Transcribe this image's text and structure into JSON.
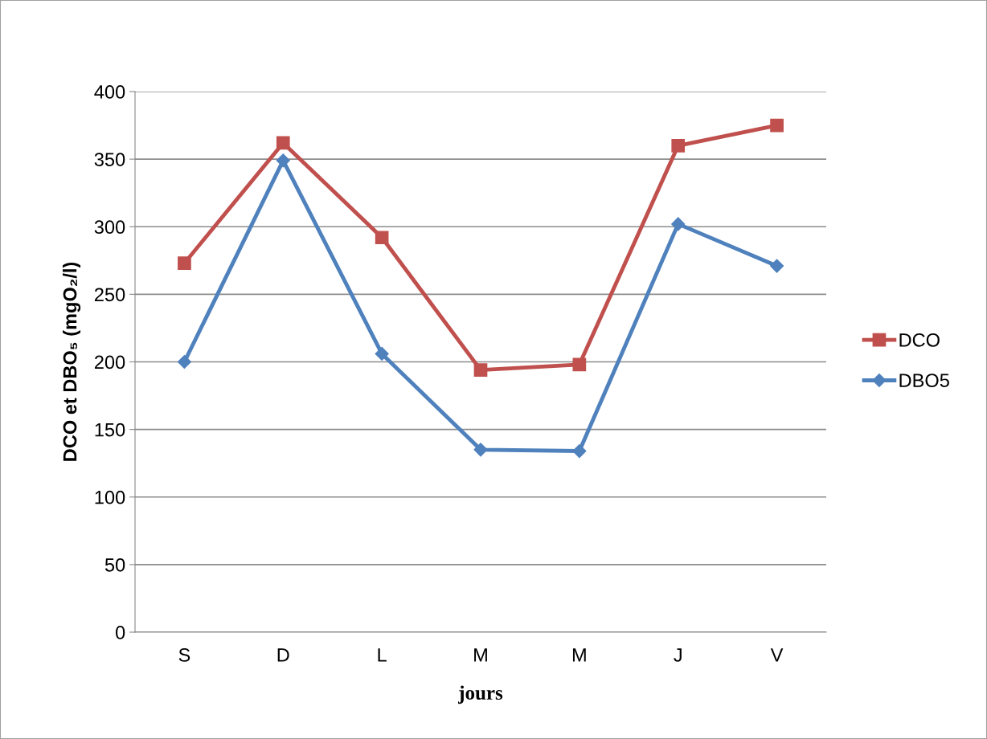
{
  "chart_data": {
    "type": "line",
    "xlabel": "jours",
    "ylabel": "DCO et DBO₅ (mgO₂/l)",
    "categories": [
      "S",
      "D",
      "L",
      "M",
      "M",
      "J",
      "V"
    ],
    "series": [
      {
        "name": "DCO",
        "color": "#c0504d",
        "marker": "square",
        "values": [
          273,
          362,
          292,
          194,
          198,
          360,
          375
        ]
      },
      {
        "name": "DBO5",
        "color": "#4f81bd",
        "marker": "diamond",
        "values": [
          200,
          349,
          206,
          135,
          134,
          302,
          271
        ]
      }
    ],
    "ylim": [
      0,
      400
    ],
    "yticks": [
      0,
      50,
      100,
      150,
      200,
      250,
      300,
      350,
      400
    ],
    "grid": "y",
    "legend": "right",
    "line_style": "solid"
  }
}
